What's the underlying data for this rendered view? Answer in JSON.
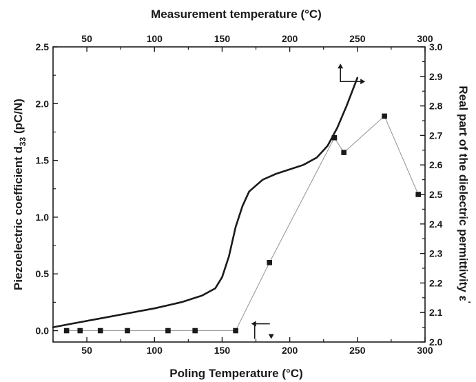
{
  "chart_data": {
    "type": "line",
    "title": "",
    "xlabel": "Poling Temperature (°C)",
    "x2label": "Measurement temperature (°C)",
    "ylabel_main": "Piezoelectric coefficient d",
    "ylabel_sub": "33",
    "ylabel_unit": " (pC/N)",
    "y2label_main": "Real part of the dielectric permittivity ε",
    "y2label_sup": "'",
    "xlim": [
      25,
      300
    ],
    "ylim": [
      -0.1,
      2.5
    ],
    "y2lim": [
      2.0,
      3.0
    ],
    "x_ticks": [
      "50",
      "100",
      "150",
      "200",
      "250",
      "300"
    ],
    "x2_ticks": [
      "50",
      "100",
      "150",
      "200",
      "250",
      "300"
    ],
    "y_ticks": [
      "0.0",
      "0.5",
      "1.0",
      "1.5",
      "2.0",
      "2.5"
    ],
    "y2_ticks": [
      "2.0",
      "2.1",
      "2.2",
      "2.3",
      "2.4",
      "2.5",
      "2.6",
      "2.7",
      "2.8",
      "2.9",
      "3.0"
    ],
    "grid": false,
    "legend": "none",
    "series": [
      {
        "axis": "left",
        "style": "markers-with-thin-line",
        "points": [
          [
            35,
            0.0
          ],
          [
            45,
            0.0
          ],
          [
            60,
            0.0
          ],
          [
            80,
            0.0
          ],
          [
            110,
            0.0
          ],
          [
            130,
            0.0
          ],
          [
            160,
            0.0
          ],
          [
            185,
            0.6
          ],
          [
            233,
            1.7
          ],
          [
            240,
            1.57
          ],
          [
            270,
            1.89
          ],
          [
            295,
            1.2
          ]
        ]
      },
      {
        "axis": "right",
        "style": "thick-line",
        "points": [
          [
            25,
            2.05
          ],
          [
            40,
            2.063
          ],
          [
            60,
            2.08
          ],
          [
            80,
            2.097
          ],
          [
            100,
            2.114
          ],
          [
            120,
            2.135
          ],
          [
            135,
            2.157
          ],
          [
            145,
            2.182
          ],
          [
            150,
            2.22
          ],
          [
            155,
            2.29
          ],
          [
            160,
            2.39
          ],
          [
            165,
            2.46
          ],
          [
            170,
            2.51
          ],
          [
            180,
            2.55
          ],
          [
            190,
            2.57
          ],
          [
            200,
            2.585
          ],
          [
            210,
            2.6
          ],
          [
            220,
            2.625
          ],
          [
            228,
            2.665
          ],
          [
            235,
            2.725
          ],
          [
            242,
            2.8
          ],
          [
            250,
            2.895
          ]
        ]
      }
    ],
    "annotations": [
      {
        "text": "arrow",
        "points_to": "left axis",
        "anchor": [
          170,
          0.0
        ]
      },
      {
        "text": "arrow",
        "points_to": "right axis",
        "anchor": [
          240,
          2.92
        ]
      }
    ],
    "colors": {
      "axis": "#1a1a1a",
      "thick_line": "#1a1a1a",
      "thin_line": "#9a9a9a",
      "markers": "#1a1a1a"
    }
  }
}
